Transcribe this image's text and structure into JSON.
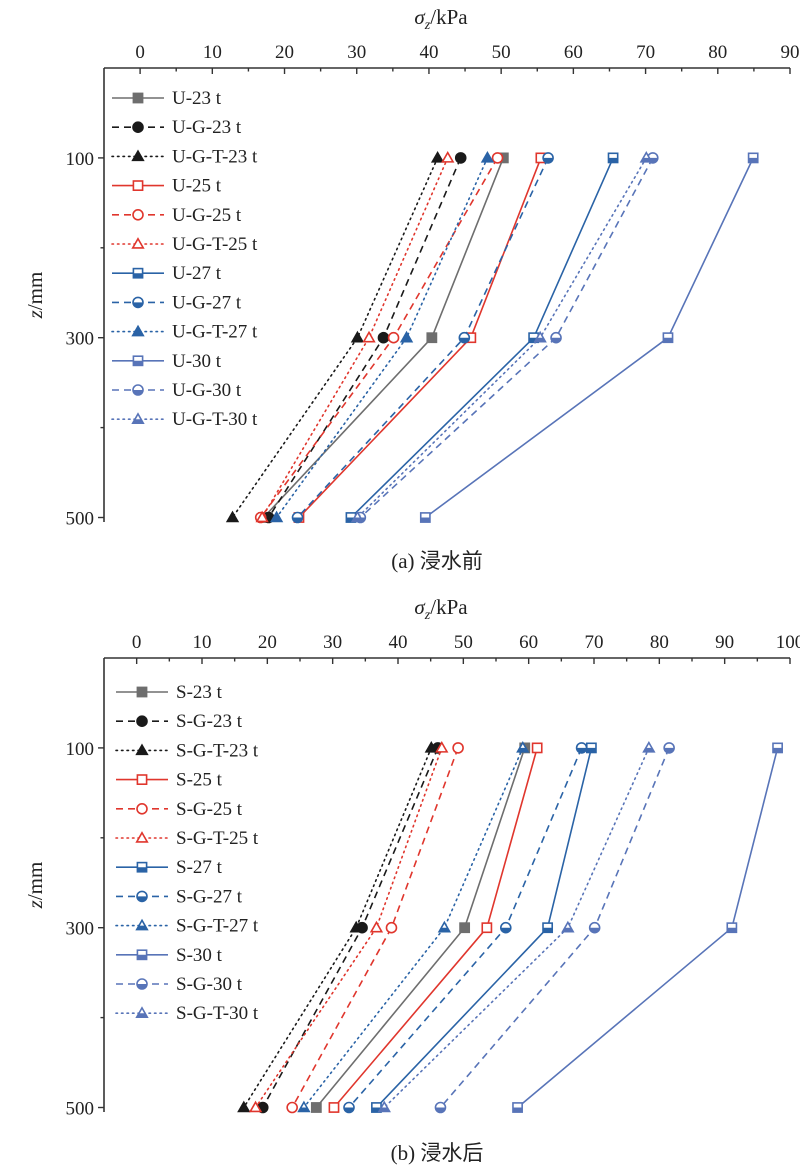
{
  "chart_data": [
    {
      "type": "line",
      "caption": "(a) 浸水前",
      "xlabel": "σz/kPa",
      "xlabel_main": "σ",
      "xlabel_sub": "z",
      "xlabel_unit": "/kPa",
      "ylabel": "z/mm",
      "ylabel_main": "z",
      "ylabel_unit": "/mm",
      "xlim": [
        -5,
        90
      ],
      "xticks": [
        0,
        10,
        20,
        30,
        40,
        50,
        60,
        70,
        80,
        90
      ],
      "ylim": [
        0,
        505
      ],
      "yticks": [
        100,
        300,
        500
      ],
      "y_inverted": true,
      "x_axis_position": "top",
      "legend_position": "top-left",
      "series": [
        {
          "name": "U-23 t",
          "color": "#6e6e6e",
          "dash": "solid",
          "marker": "square-filled",
          "points": [
            [
              50.3,
              100
            ],
            [
              40.4,
              300
            ],
            [
              17.1,
              500
            ]
          ]
        },
        {
          "name": "U-G-23 t",
          "color": "#1a1a1a",
          "dash": "dashed",
          "marker": "circle-filled",
          "points": [
            [
              44.4,
              100
            ],
            [
              33.7,
              300
            ],
            [
              17.8,
              500
            ]
          ]
        },
        {
          "name": "U-G-T-23 t",
          "color": "#1a1a1a",
          "dash": "dotted",
          "marker": "triangle-filled",
          "points": [
            [
              41.2,
              100
            ],
            [
              30.1,
              300
            ],
            [
              12.8,
              500
            ]
          ]
        },
        {
          "name": "U-25 t",
          "color": "#e0362d",
          "dash": "solid",
          "marker": "square-open",
          "points": [
            [
              55.5,
              100
            ],
            [
              45.8,
              300
            ],
            [
              22.0,
              500
            ]
          ]
        },
        {
          "name": "U-G-25 t",
          "color": "#e0362d",
          "dash": "dashed",
          "marker": "circle-open",
          "points": [
            [
              49.5,
              100
            ],
            [
              35.1,
              300
            ],
            [
              16.7,
              500
            ]
          ]
        },
        {
          "name": "U-G-T-25 t",
          "color": "#e0362d",
          "dash": "dotted",
          "marker": "triangle-open",
          "points": [
            [
              42.6,
              100
            ],
            [
              31.7,
              300
            ],
            [
              16.9,
              500
            ]
          ]
        },
        {
          "name": "U-27 t",
          "color": "#2a63a6",
          "dash": "solid",
          "marker": "square-half",
          "points": [
            [
              65.5,
              100
            ],
            [
              54.5,
              300
            ],
            [
              29.2,
              500
            ]
          ]
        },
        {
          "name": "U-G-27 t",
          "color": "#2a63a6",
          "dash": "dashed",
          "marker": "circle-half",
          "points": [
            [
              56.5,
              100
            ],
            [
              44.9,
              300
            ],
            [
              21.8,
              500
            ]
          ]
        },
        {
          "name": "U-G-T-27 t",
          "color": "#2a63a6",
          "dash": "dotted",
          "marker": "triangle-filled",
          "points": [
            [
              48.1,
              100
            ],
            [
              36.9,
              300
            ],
            [
              18.9,
              500
            ]
          ]
        },
        {
          "name": "U-30 t",
          "color": "#5874b8",
          "dash": "solid",
          "marker": "square-half",
          "points": [
            [
              84.9,
              100
            ],
            [
              73.1,
              300
            ],
            [
              39.5,
              500
            ]
          ]
        },
        {
          "name": "U-G-30 t",
          "color": "#5874b8",
          "dash": "dashed",
          "marker": "circle-half",
          "points": [
            [
              71.0,
              100
            ],
            [
              57.6,
              300
            ],
            [
              30.5,
              500
            ]
          ]
        },
        {
          "name": "U-G-T-30 t",
          "color": "#5874b8",
          "dash": "dotted",
          "marker": "triangle-half",
          "points": [
            [
              70.1,
              100
            ],
            [
              55.4,
              300
            ],
            [
              30.1,
              500
            ]
          ]
        }
      ]
    },
    {
      "type": "line",
      "caption": "(b) 浸水后",
      "xlabel": "σz/kPa",
      "xlabel_main": "σ",
      "xlabel_sub": "z",
      "xlabel_unit": "/kPa",
      "ylabel": "z/mm",
      "ylabel_main": "z",
      "ylabel_unit": "/mm",
      "xlim": [
        -5,
        100
      ],
      "xticks": [
        0,
        10,
        20,
        30,
        40,
        50,
        60,
        70,
        80,
        90,
        100
      ],
      "ylim": [
        0,
        505
      ],
      "yticks": [
        100,
        300,
        500
      ],
      "y_inverted": true,
      "x_axis_position": "top",
      "legend_position": "top-left",
      "series": [
        {
          "name": "S-23 t",
          "color": "#6e6e6e",
          "dash": "solid",
          "marker": "square-filled",
          "points": [
            [
              59.4,
              100
            ],
            [
              50.2,
              300
            ],
            [
              27.5,
              500
            ]
          ]
        },
        {
          "name": "S-G-23 t",
          "color": "#1a1a1a",
          "dash": "dashed",
          "marker": "circle-filled",
          "points": [
            [
              46.1,
              100
            ],
            [
              34.5,
              300
            ],
            [
              19.3,
              500
            ]
          ]
        },
        {
          "name": "S-G-T-23 t",
          "color": "#1a1a1a",
          "dash": "dotted",
          "marker": "triangle-filled",
          "points": [
            [
              45.1,
              100
            ],
            [
              33.6,
              300
            ],
            [
              16.4,
              500
            ]
          ]
        },
        {
          "name": "S-25 t",
          "color": "#e0362d",
          "dash": "solid",
          "marker": "square-open",
          "points": [
            [
              61.3,
              100
            ],
            [
              53.6,
              300
            ],
            [
              30.2,
              500
            ]
          ]
        },
        {
          "name": "S-G-25 t",
          "color": "#e0362d",
          "dash": "dashed",
          "marker": "circle-open",
          "points": [
            [
              49.2,
              100
            ],
            [
              39.0,
              300
            ],
            [
              23.8,
              500
            ]
          ]
        },
        {
          "name": "S-G-T-25 t",
          "color": "#e0362d",
          "dash": "dotted",
          "marker": "triangle-open",
          "points": [
            [
              46.7,
              100
            ],
            [
              36.7,
              300
            ],
            [
              18.2,
              500
            ]
          ]
        },
        {
          "name": "S-27 t",
          "color": "#2a63a6",
          "dash": "solid",
          "marker": "square-half",
          "points": [
            [
              69.6,
              100
            ],
            [
              62.9,
              300
            ],
            [
              36.7,
              500
            ]
          ]
        },
        {
          "name": "S-G-27 t",
          "color": "#2a63a6",
          "dash": "dashed",
          "marker": "circle-half",
          "points": [
            [
              68.1,
              100
            ],
            [
              56.5,
              300
            ],
            [
              32.5,
              500
            ]
          ]
        },
        {
          "name": "S-G-T-27 t",
          "color": "#2a63a6",
          "dash": "dotted",
          "marker": "triangle-half",
          "points": [
            [
              59.1,
              100
            ],
            [
              47.1,
              300
            ],
            [
              25.6,
              500
            ]
          ]
        },
        {
          "name": "S-30 t",
          "color": "#5874b8",
          "dash": "solid",
          "marker": "square-half",
          "points": [
            [
              98.1,
              100
            ],
            [
              91.1,
              300
            ],
            [
              58.3,
              500
            ]
          ]
        },
        {
          "name": "S-G-30 t",
          "color": "#5874b8",
          "dash": "dashed",
          "marker": "circle-half",
          "points": [
            [
              81.5,
              100
            ],
            [
              70.1,
              300
            ],
            [
              46.5,
              500
            ]
          ]
        },
        {
          "name": "S-G-T-30 t",
          "color": "#5874b8",
          "dash": "dotted",
          "marker": "triangle-half",
          "points": [
            [
              78.4,
              100
            ],
            [
              66.0,
              300
            ],
            [
              37.9,
              500
            ]
          ]
        }
      ]
    }
  ]
}
